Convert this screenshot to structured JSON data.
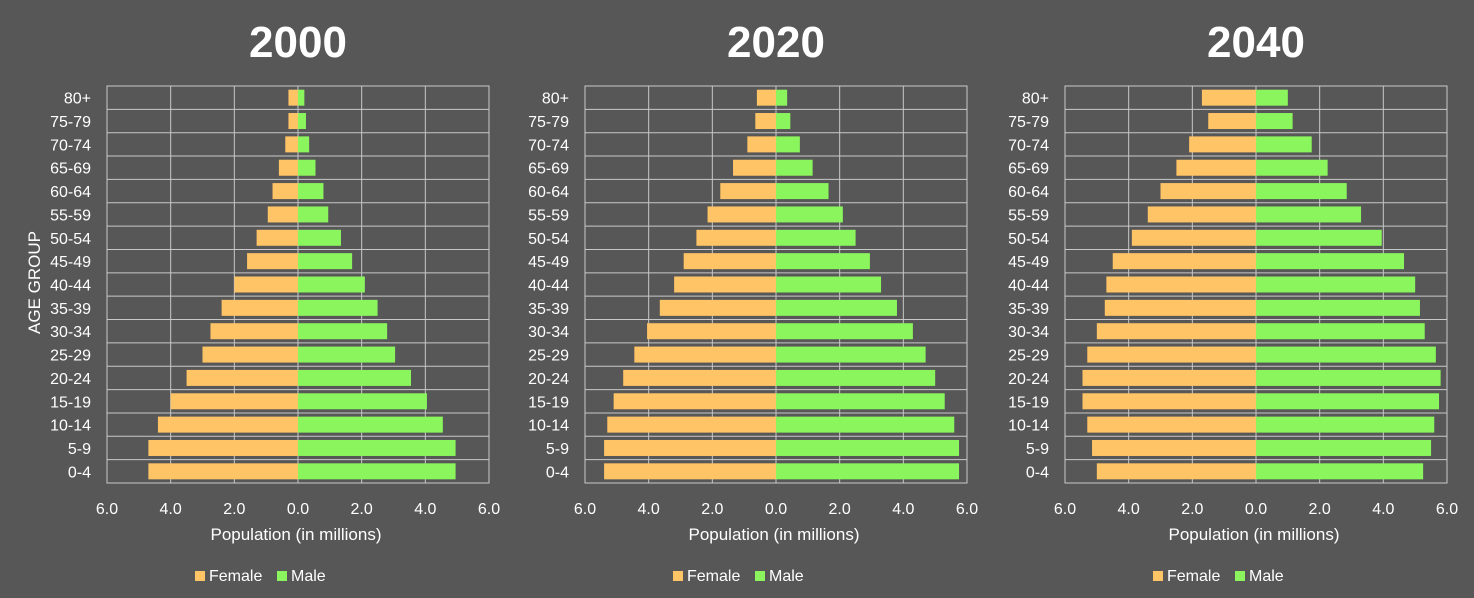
{
  "chart_data": [
    {
      "type": "bar",
      "title": "2000",
      "ylabel": "AGE GROUP",
      "xlabel": "Population (in millions)",
      "categories": [
        "0-4",
        "5-9",
        "10-14",
        "15-19",
        "20-24",
        "25-29",
        "30-34",
        "35-39",
        "40-44",
        "45-49",
        "50-54",
        "55-59",
        "60-64",
        "65-69",
        "70-74",
        "75-79",
        "80+"
      ],
      "xlim": [
        -6,
        6
      ],
      "xticks": [
        "6.0",
        "4.0",
        "2.0",
        "0.0",
        "2.0",
        "4.0",
        "6.0"
      ],
      "legend_position": "bottom",
      "grid": true,
      "series": [
        {
          "name": "Female",
          "color": "#FFC466",
          "values": [
            4.7,
            4.7,
            4.4,
            4.0,
            3.5,
            3.0,
            2.75,
            2.4,
            2.0,
            1.6,
            1.3,
            0.95,
            0.8,
            0.6,
            0.4,
            0.3,
            0.3
          ]
        },
        {
          "name": "Male",
          "color": "#8AF55C",
          "values": [
            4.95,
            4.95,
            4.55,
            4.05,
            3.55,
            3.05,
            2.8,
            2.5,
            2.1,
            1.7,
            1.35,
            0.95,
            0.8,
            0.55,
            0.35,
            0.25,
            0.2
          ]
        }
      ]
    },
    {
      "type": "bar",
      "title": "2020",
      "xlabel": "Population (in millions)",
      "categories": [
        "0-4",
        "5-9",
        "10-14",
        "15-19",
        "20-24",
        "25-29",
        "30-34",
        "35-39",
        "40-44",
        "45-49",
        "50-54",
        "55-59",
        "60-64",
        "65-69",
        "70-74",
        "75-79",
        "80+"
      ],
      "xlim": [
        -6,
        6
      ],
      "xticks": [
        "6.0",
        "4.0",
        "2.0",
        "0.0",
        "2.0",
        "4.0",
        "6.0"
      ],
      "legend_position": "bottom",
      "grid": true,
      "series": [
        {
          "name": "Female",
          "color": "#FFC466",
          "values": [
            5.4,
            5.4,
            5.3,
            5.1,
            4.8,
            4.45,
            4.05,
            3.65,
            3.2,
            2.9,
            2.5,
            2.15,
            1.75,
            1.35,
            0.9,
            0.65,
            0.6
          ]
        },
        {
          "name": "Male",
          "color": "#8AF55C",
          "values": [
            5.75,
            5.75,
            5.6,
            5.3,
            5.0,
            4.7,
            4.3,
            3.8,
            3.3,
            2.95,
            2.5,
            2.1,
            1.65,
            1.15,
            0.75,
            0.45,
            0.35
          ]
        }
      ]
    },
    {
      "type": "bar",
      "title": "2040",
      "xlabel": "Population (in millions)",
      "categories": [
        "0-4",
        "5-9",
        "10-14",
        "15-19",
        "20-24",
        "25-29",
        "30-34",
        "35-39",
        "40-44",
        "45-49",
        "50-54",
        "55-59",
        "60-64",
        "65-69",
        "70-74",
        "75-79",
        "80+"
      ],
      "xlim": [
        -6,
        6
      ],
      "xticks": [
        "6.0",
        "4.0",
        "2.0",
        "0.0",
        "2.0",
        "4.0",
        "6.0"
      ],
      "legend_position": "bottom",
      "grid": true,
      "series": [
        {
          "name": "Female",
          "color": "#FFC466",
          "values": [
            5.0,
            5.15,
            5.3,
            5.45,
            5.45,
            5.3,
            5.0,
            4.75,
            4.7,
            4.5,
            3.9,
            3.4,
            3.0,
            2.5,
            2.1,
            1.5,
            1.7
          ]
        },
        {
          "name": "Male",
          "color": "#8AF55C",
          "values": [
            5.25,
            5.5,
            5.6,
            5.75,
            5.8,
            5.65,
            5.3,
            5.15,
            5.0,
            4.65,
            3.95,
            3.3,
            2.85,
            2.25,
            1.75,
            1.15,
            1.0
          ]
        }
      ]
    }
  ],
  "colors": {
    "background": "#575757",
    "plot_area": "#575757",
    "grid": "#C8C8C8",
    "text": "#FFFFFF"
  }
}
